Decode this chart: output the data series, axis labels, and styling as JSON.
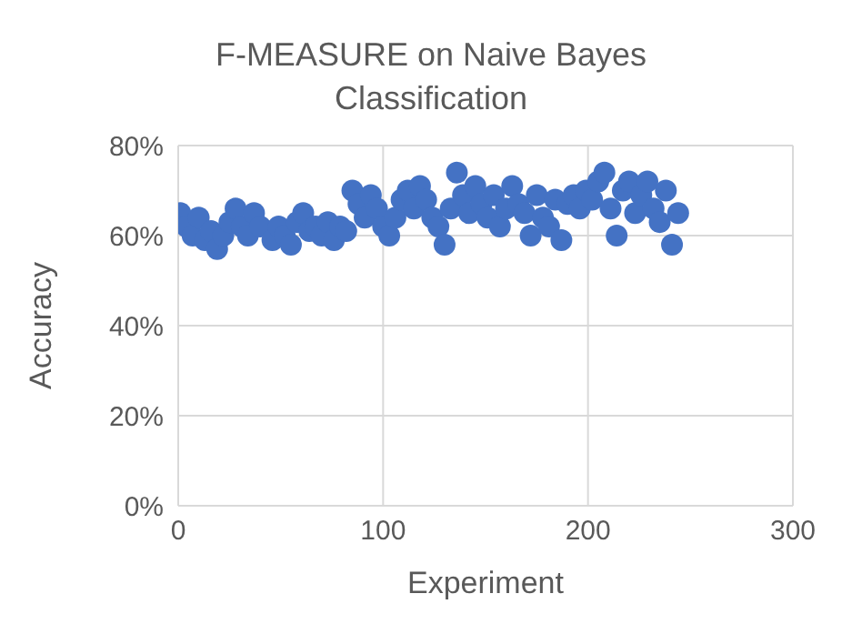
{
  "chart_data": {
    "type": "scatter",
    "title": "F-MEASURE on Naive Bayes Classification",
    "xlabel": "Experiment",
    "ylabel": "Accuracy",
    "x": [
      1,
      4,
      7,
      10,
      13,
      16,
      19,
      22,
      25,
      28,
      31,
      34,
      37,
      40,
      46,
      49,
      52,
      55,
      58,
      61,
      64,
      67,
      70,
      73,
      76,
      79,
      82,
      85,
      88,
      91,
      94,
      97,
      100,
      103,
      106,
      109,
      112,
      115,
      118,
      121,
      124,
      127,
      130,
      133,
      136,
      139,
      142,
      145,
      148,
      151,
      154,
      157,
      160,
      163,
      166,
      169,
      172,
      175,
      178,
      181,
      184,
      187,
      190,
      193,
      196,
      199,
      202,
      205,
      208,
      211,
      214,
      217,
      220,
      223,
      226,
      229,
      232,
      235,
      238,
      241,
      244
    ],
    "series": [
      {
        "color": "#4472c4",
        "values": [
          65,
          62,
          60,
          64,
          59,
          61,
          57,
          60,
          63,
          66,
          62,
          60,
          65,
          62,
          59,
          62,
          60,
          58,
          63,
          65,
          61,
          62,
          60,
          63,
          59,
          62,
          61,
          70,
          67,
          64,
          69,
          66,
          62,
          60,
          64,
          68,
          70,
          66,
          71,
          68,
          64,
          62,
          58,
          66,
          74,
          69,
          65,
          71,
          67,
          64,
          69,
          62,
          66,
          71,
          67,
          65,
          60,
          69,
          64,
          62,
          68,
          59,
          67,
          69,
          66,
          70,
          68,
          72,
          74,
          66,
          60,
          70,
          72,
          65,
          69,
          72,
          66,
          63,
          70,
          58,
          65
        ]
      }
    ],
    "xlim": [
      0,
      300
    ],
    "xticks": [
      0,
      100,
      200,
      300
    ],
    "ylim": [
      0,
      80
    ],
    "yticks": [
      {
        "value": 0,
        "label": "0%"
      },
      {
        "value": 20,
        "label": "20%"
      },
      {
        "value": 40,
        "label": "40%"
      },
      {
        "value": 60,
        "label": "60%"
      },
      {
        "value": 80,
        "label": "80%"
      }
    ],
    "grid": true,
    "marker": "circle"
  }
}
